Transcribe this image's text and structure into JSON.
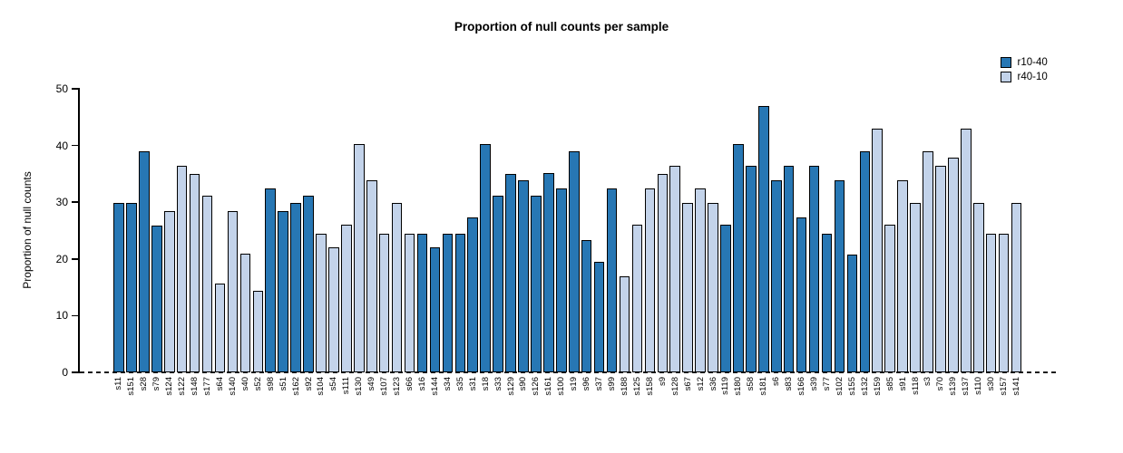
{
  "title": "Proportion of null counts per sample",
  "ylabel": "Proportion of null counts",
  "colors": {
    "series_dark": "#2777b4",
    "series_light": "#c3d3ea",
    "bar_border": "#000000",
    "axis": "#000000"
  },
  "legend": [
    {
      "label": "r10-40",
      "color": "#2777b4"
    },
    {
      "label": "r40-10",
      "color": "#c3d3ea"
    }
  ],
  "chart_data": {
    "type": "bar",
    "title": "Proportion of null counts per sample",
    "xlabel": "",
    "ylabel": "Proportion of null counts",
    "ylim": [
      0,
      50
    ],
    "yticks": [
      0,
      10,
      20,
      30,
      40,
      50
    ],
    "grid": false,
    "legend_position": "top-right",
    "zero_line_style": "dashed",
    "series_colors": {
      "r10-40": "#2777b4",
      "r40-10": "#c3d3ea"
    },
    "bars": [
      {
        "sample": "s11",
        "group": "r10-40",
        "value": 29.8
      },
      {
        "sample": "s151",
        "group": "r10-40",
        "value": 29.8
      },
      {
        "sample": "s28",
        "group": "r10-40",
        "value": 39.0
      },
      {
        "sample": "s79",
        "group": "r10-40",
        "value": 25.9
      },
      {
        "sample": "s124",
        "group": "r40-10",
        "value": 28.5
      },
      {
        "sample": "s122",
        "group": "r40-10",
        "value": 36.4
      },
      {
        "sample": "s148",
        "group": "r40-10",
        "value": 35.0
      },
      {
        "sample": "s177",
        "group": "r40-10",
        "value": 31.2
      },
      {
        "sample": "s64",
        "group": "r40-10",
        "value": 15.7
      },
      {
        "sample": "s140",
        "group": "r40-10",
        "value": 28.5
      },
      {
        "sample": "s40",
        "group": "r40-10",
        "value": 20.9
      },
      {
        "sample": "s52",
        "group": "r40-10",
        "value": 14.3
      },
      {
        "sample": "s98",
        "group": "r10-40",
        "value": 32.5
      },
      {
        "sample": "s51",
        "group": "r10-40",
        "value": 28.5
      },
      {
        "sample": "s162",
        "group": "r10-40",
        "value": 29.8
      },
      {
        "sample": "s92",
        "group": "r10-40",
        "value": 31.2
      },
      {
        "sample": "s104",
        "group": "r40-10",
        "value": 24.5
      },
      {
        "sample": "s54",
        "group": "r40-10",
        "value": 22.0
      },
      {
        "sample": "s111",
        "group": "r40-10",
        "value": 26.0
      },
      {
        "sample": "s130",
        "group": "r40-10",
        "value": 40.2
      },
      {
        "sample": "s49",
        "group": "r40-10",
        "value": 33.9
      },
      {
        "sample": "s107",
        "group": "r40-10",
        "value": 24.5
      },
      {
        "sample": "s123",
        "group": "r40-10",
        "value": 29.8
      },
      {
        "sample": "s66",
        "group": "r40-10",
        "value": 24.5
      },
      {
        "sample": "s16",
        "group": "r10-40",
        "value": 24.5
      },
      {
        "sample": "s144",
        "group": "r10-40",
        "value": 22.0
      },
      {
        "sample": "s34",
        "group": "r10-40",
        "value": 24.5
      },
      {
        "sample": "s35",
        "group": "r10-40",
        "value": 24.5
      },
      {
        "sample": "s31",
        "group": "r10-40",
        "value": 27.3
      },
      {
        "sample": "s18",
        "group": "r10-40",
        "value": 40.2
      },
      {
        "sample": "s33",
        "group": "r10-40",
        "value": 31.2
      },
      {
        "sample": "s129",
        "group": "r10-40",
        "value": 35.0
      },
      {
        "sample": "s90",
        "group": "r10-40",
        "value": 33.8
      },
      {
        "sample": "s126",
        "group": "r10-40",
        "value": 31.2
      },
      {
        "sample": "s161",
        "group": "r10-40",
        "value": 35.2
      },
      {
        "sample": "s100",
        "group": "r10-40",
        "value": 32.5
      },
      {
        "sample": "s19",
        "group": "r10-40",
        "value": 39.0
      },
      {
        "sample": "s96",
        "group": "r10-40",
        "value": 23.3
      },
      {
        "sample": "s37",
        "group": "r10-40",
        "value": 19.5
      },
      {
        "sample": "s99",
        "group": "r10-40",
        "value": 32.5
      },
      {
        "sample": "s188",
        "group": "r40-10",
        "value": 16.9
      },
      {
        "sample": "s125",
        "group": "r40-10",
        "value": 26.0
      },
      {
        "sample": "s158",
        "group": "r40-10",
        "value": 32.5
      },
      {
        "sample": "s9",
        "group": "r40-10",
        "value": 35.0
      },
      {
        "sample": "s128",
        "group": "r40-10",
        "value": 36.4
      },
      {
        "sample": "s67",
        "group": "r40-10",
        "value": 29.8
      },
      {
        "sample": "s12",
        "group": "r40-10",
        "value": 32.5
      },
      {
        "sample": "s36",
        "group": "r40-10",
        "value": 29.8
      },
      {
        "sample": "s119",
        "group": "r10-40",
        "value": 26.0
      },
      {
        "sample": "s180",
        "group": "r10-40",
        "value": 40.2
      },
      {
        "sample": "s58",
        "group": "r10-40",
        "value": 36.4
      },
      {
        "sample": "s181",
        "group": "r10-40",
        "value": 46.9
      },
      {
        "sample": "s6",
        "group": "r10-40",
        "value": 33.8
      },
      {
        "sample": "s83",
        "group": "r10-40",
        "value": 36.4
      },
      {
        "sample": "s166",
        "group": "r10-40",
        "value": 27.3
      },
      {
        "sample": "s39",
        "group": "r10-40",
        "value": 36.4
      },
      {
        "sample": "s77",
        "group": "r10-40",
        "value": 24.5
      },
      {
        "sample": "s102",
        "group": "r10-40",
        "value": 33.8
      },
      {
        "sample": "s155",
        "group": "r10-40",
        "value": 20.8
      },
      {
        "sample": "s132",
        "group": "r10-40",
        "value": 39.0
      },
      {
        "sample": "s159",
        "group": "r40-10",
        "value": 43.0
      },
      {
        "sample": "s85",
        "group": "r40-10",
        "value": 26.0
      },
      {
        "sample": "s91",
        "group": "r40-10",
        "value": 33.8
      },
      {
        "sample": "s118",
        "group": "r40-10",
        "value": 29.8
      },
      {
        "sample": "s3",
        "group": "r40-10",
        "value": 39.0
      },
      {
        "sample": "s70",
        "group": "r40-10",
        "value": 36.4
      },
      {
        "sample": "s139",
        "group": "r40-10",
        "value": 37.8
      },
      {
        "sample": "s137",
        "group": "r40-10",
        "value": 43.0
      },
      {
        "sample": "s110",
        "group": "r40-10",
        "value": 29.8
      },
      {
        "sample": "s30",
        "group": "r40-10",
        "value": 24.5
      },
      {
        "sample": "s157",
        "group": "r40-10",
        "value": 24.5
      },
      {
        "sample": "s141",
        "group": "r40-10",
        "value": 29.8
      }
    ]
  }
}
